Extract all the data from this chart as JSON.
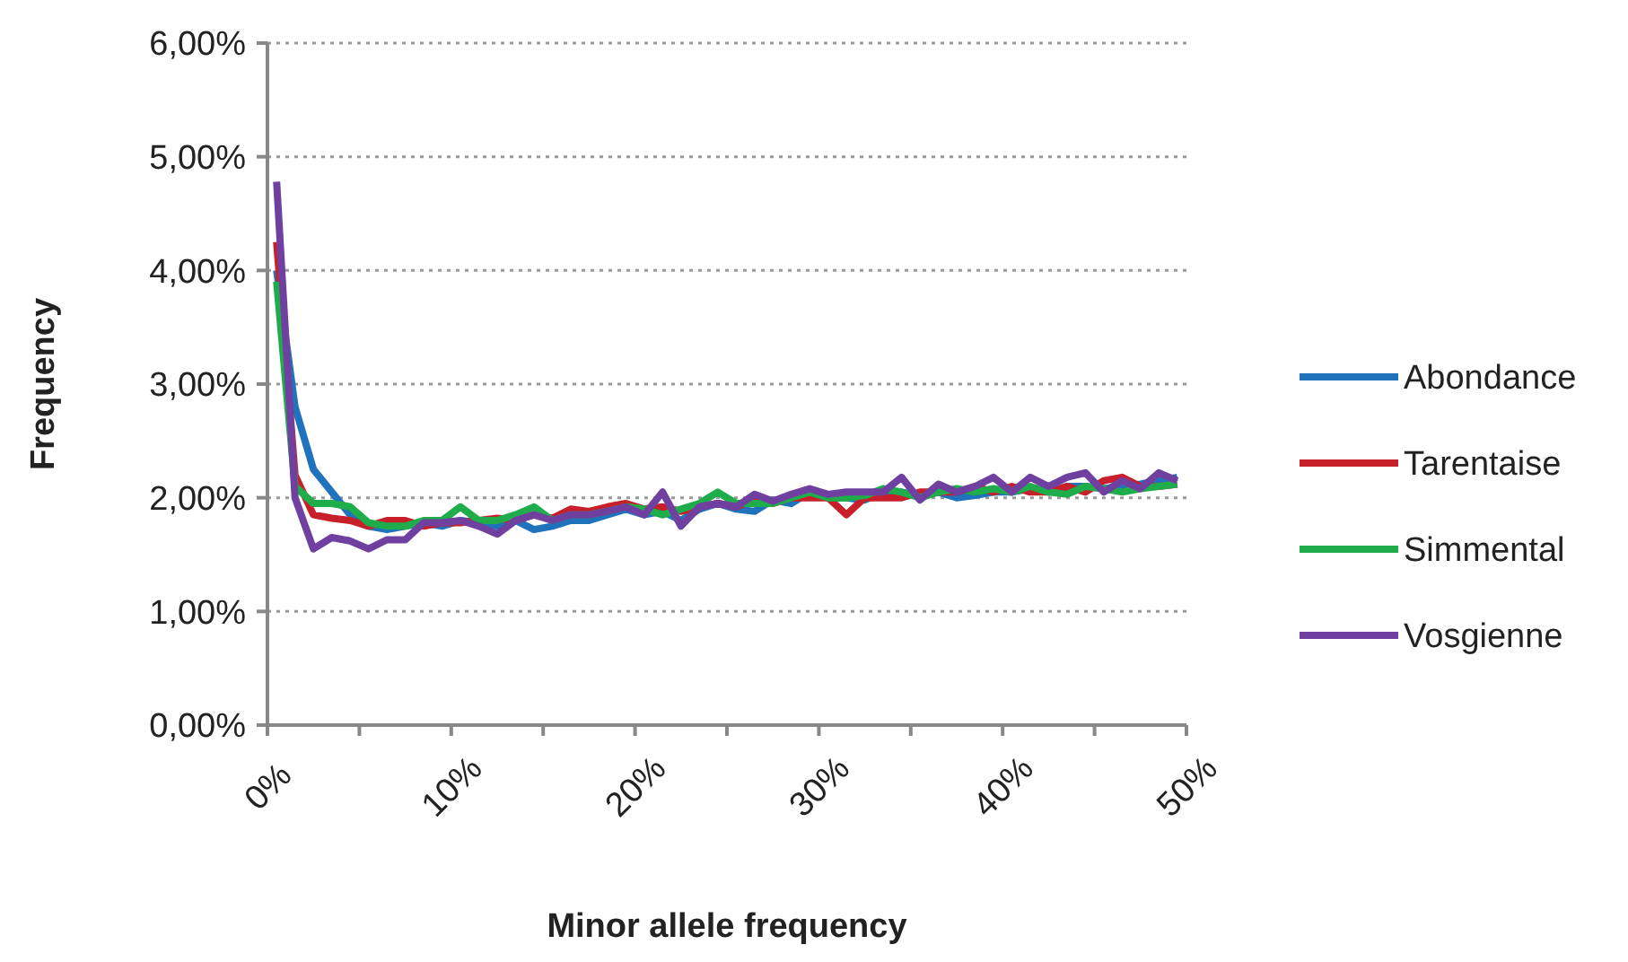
{
  "chart_data": {
    "type": "line",
    "xlabel": "Minor allele frequency",
    "ylabel": "Frequency",
    "x": [
      0.5,
      1.5,
      2.5,
      3.5,
      4.5,
      5.5,
      6.5,
      7.5,
      8.5,
      9.5,
      10.5,
      11.5,
      12.5,
      13.5,
      14.5,
      15.5,
      16.5,
      17.5,
      18.5,
      19.5,
      20.5,
      21.5,
      22.5,
      23.5,
      24.5,
      25.5,
      26.5,
      27.5,
      28.5,
      29.5,
      30.5,
      31.5,
      32.5,
      33.5,
      34.5,
      35.5,
      36.5,
      37.5,
      38.5,
      39.5,
      40.5,
      41.5,
      42.5,
      43.5,
      44.5,
      45.5,
      46.5,
      47.5,
      48.5,
      49.5
    ],
    "series": [
      {
        "name": "Abondance",
        "color": "#1f72bc",
        "values": [
          4.0,
          2.8,
          2.25,
          2.05,
          1.85,
          1.75,
          1.72,
          1.75,
          1.78,
          1.75,
          1.8,
          1.78,
          1.75,
          1.8,
          1.72,
          1.75,
          1.8,
          1.8,
          1.85,
          1.9,
          1.85,
          1.88,
          1.8,
          1.9,
          1.95,
          1.9,
          1.88,
          1.98,
          1.95,
          2.05,
          2.0,
          2.0,
          1.98,
          2.05,
          2.05,
          2.02,
          2.05,
          2.0,
          2.02,
          2.05,
          2.05,
          2.08,
          2.05,
          2.1,
          2.1,
          2.08,
          2.1,
          2.12,
          2.15,
          2.18
        ]
      },
      {
        "name": "Tarentaise",
        "color": "#c8202a",
        "values": [
          4.25,
          2.2,
          1.85,
          1.82,
          1.8,
          1.75,
          1.8,
          1.8,
          1.75,
          1.78,
          1.78,
          1.8,
          1.82,
          1.8,
          1.85,
          1.82,
          1.9,
          1.88,
          1.92,
          1.95,
          1.9,
          1.92,
          1.88,
          1.92,
          1.95,
          1.92,
          1.98,
          1.95,
          2.0,
          2.0,
          2.0,
          1.85,
          2.0,
          2.0,
          2.0,
          2.05,
          2.05,
          2.05,
          2.1,
          2.05,
          2.1,
          2.05,
          2.05,
          2.1,
          2.05,
          2.15,
          2.18,
          2.1,
          2.1,
          2.12
        ]
      },
      {
        "name": "Simmental",
        "color": "#1fad4b",
        "values": [
          3.9,
          2.1,
          1.95,
          1.95,
          1.92,
          1.78,
          1.75,
          1.75,
          1.8,
          1.8,
          1.92,
          1.8,
          1.8,
          1.85,
          1.92,
          1.8,
          1.85,
          1.85,
          1.88,
          1.92,
          1.9,
          1.85,
          1.9,
          1.95,
          2.05,
          1.95,
          1.95,
          1.95,
          2.0,
          2.05,
          2.0,
          2.0,
          2.02,
          2.08,
          2.05,
          2.0,
          2.05,
          2.08,
          2.05,
          2.08,
          2.05,
          2.1,
          2.05,
          2.03,
          2.1,
          2.08,
          2.05,
          2.08,
          2.1,
          2.12
        ]
      },
      {
        "name": "Vosgienne",
        "color": "#7040a0",
        "values": [
          4.78,
          2.0,
          1.55,
          1.65,
          1.62,
          1.55,
          1.63,
          1.63,
          1.78,
          1.78,
          1.8,
          1.75,
          1.68,
          1.8,
          1.85,
          1.8,
          1.85,
          1.85,
          1.88,
          1.92,
          1.85,
          2.05,
          1.75,
          1.92,
          1.95,
          1.92,
          2.03,
          1.97,
          2.03,
          2.08,
          2.03,
          2.05,
          2.05,
          2.05,
          2.18,
          1.98,
          2.12,
          2.05,
          2.1,
          2.18,
          2.05,
          2.18,
          2.1,
          2.18,
          2.22,
          2.05,
          2.15,
          2.08,
          2.22,
          2.15
        ]
      }
    ],
    "xlim": [
      0,
      50
    ],
    "xticks": [
      {
        "value": 0,
        "label": "0%"
      },
      {
        "value": 5,
        "label": null
      },
      {
        "value": 10,
        "label": "10%"
      },
      {
        "value": 15,
        "label": null
      },
      {
        "value": 20,
        "label": "20%"
      },
      {
        "value": 25,
        "label": null
      },
      {
        "value": 30,
        "label": "30%"
      },
      {
        "value": 35,
        "label": null
      },
      {
        "value": 40,
        "label": "40%"
      },
      {
        "value": 45,
        "label": null
      },
      {
        "value": 50,
        "label": "50%"
      }
    ],
    "ylim": [
      0,
      6
    ],
    "yticks": [
      {
        "value": 0,
        "label": "0,00%"
      },
      {
        "value": 1,
        "label": "1,00%"
      },
      {
        "value": 2,
        "label": "2,00%"
      },
      {
        "value": 3,
        "label": "3,00%"
      },
      {
        "value": 4,
        "label": "4,00%"
      },
      {
        "value": 5,
        "label": "5,00%"
      },
      {
        "value": 6,
        "label": "6,00%"
      }
    ],
    "grid": "y",
    "legend": "right",
    "line_style": "solid",
    "marker": "none"
  }
}
